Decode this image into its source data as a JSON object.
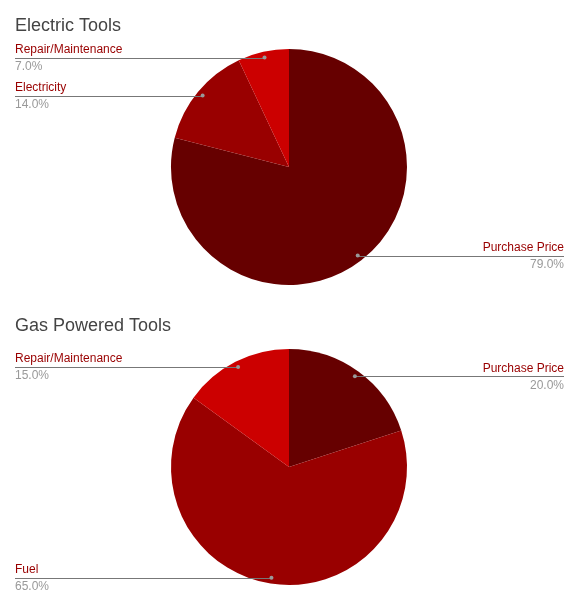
{
  "chart_data": [
    {
      "type": "pie",
      "title": "Electric Tools",
      "categories": [
        "Purchase Price",
        "Electricity",
        "Repair/Maintenance"
      ],
      "values": [
        79,
        14,
        7
      ],
      "value_labels": [
        "79.0%",
        "14.0%",
        "7.0%"
      ],
      "colors": [
        "#660000",
        "#990000",
        "#cc0000"
      ],
      "data_labels": true
    },
    {
      "type": "pie",
      "title": "Gas Powered Tools",
      "categories": [
        "Purchase Price",
        "Fuel",
        "Repair/Maintenance"
      ],
      "values": [
        20,
        65,
        15
      ],
      "value_labels": [
        "20.0%",
        "65.0%",
        "15.0%"
      ],
      "colors": [
        "#660000",
        "#990000",
        "#cc0000"
      ],
      "data_labels": true
    }
  ]
}
